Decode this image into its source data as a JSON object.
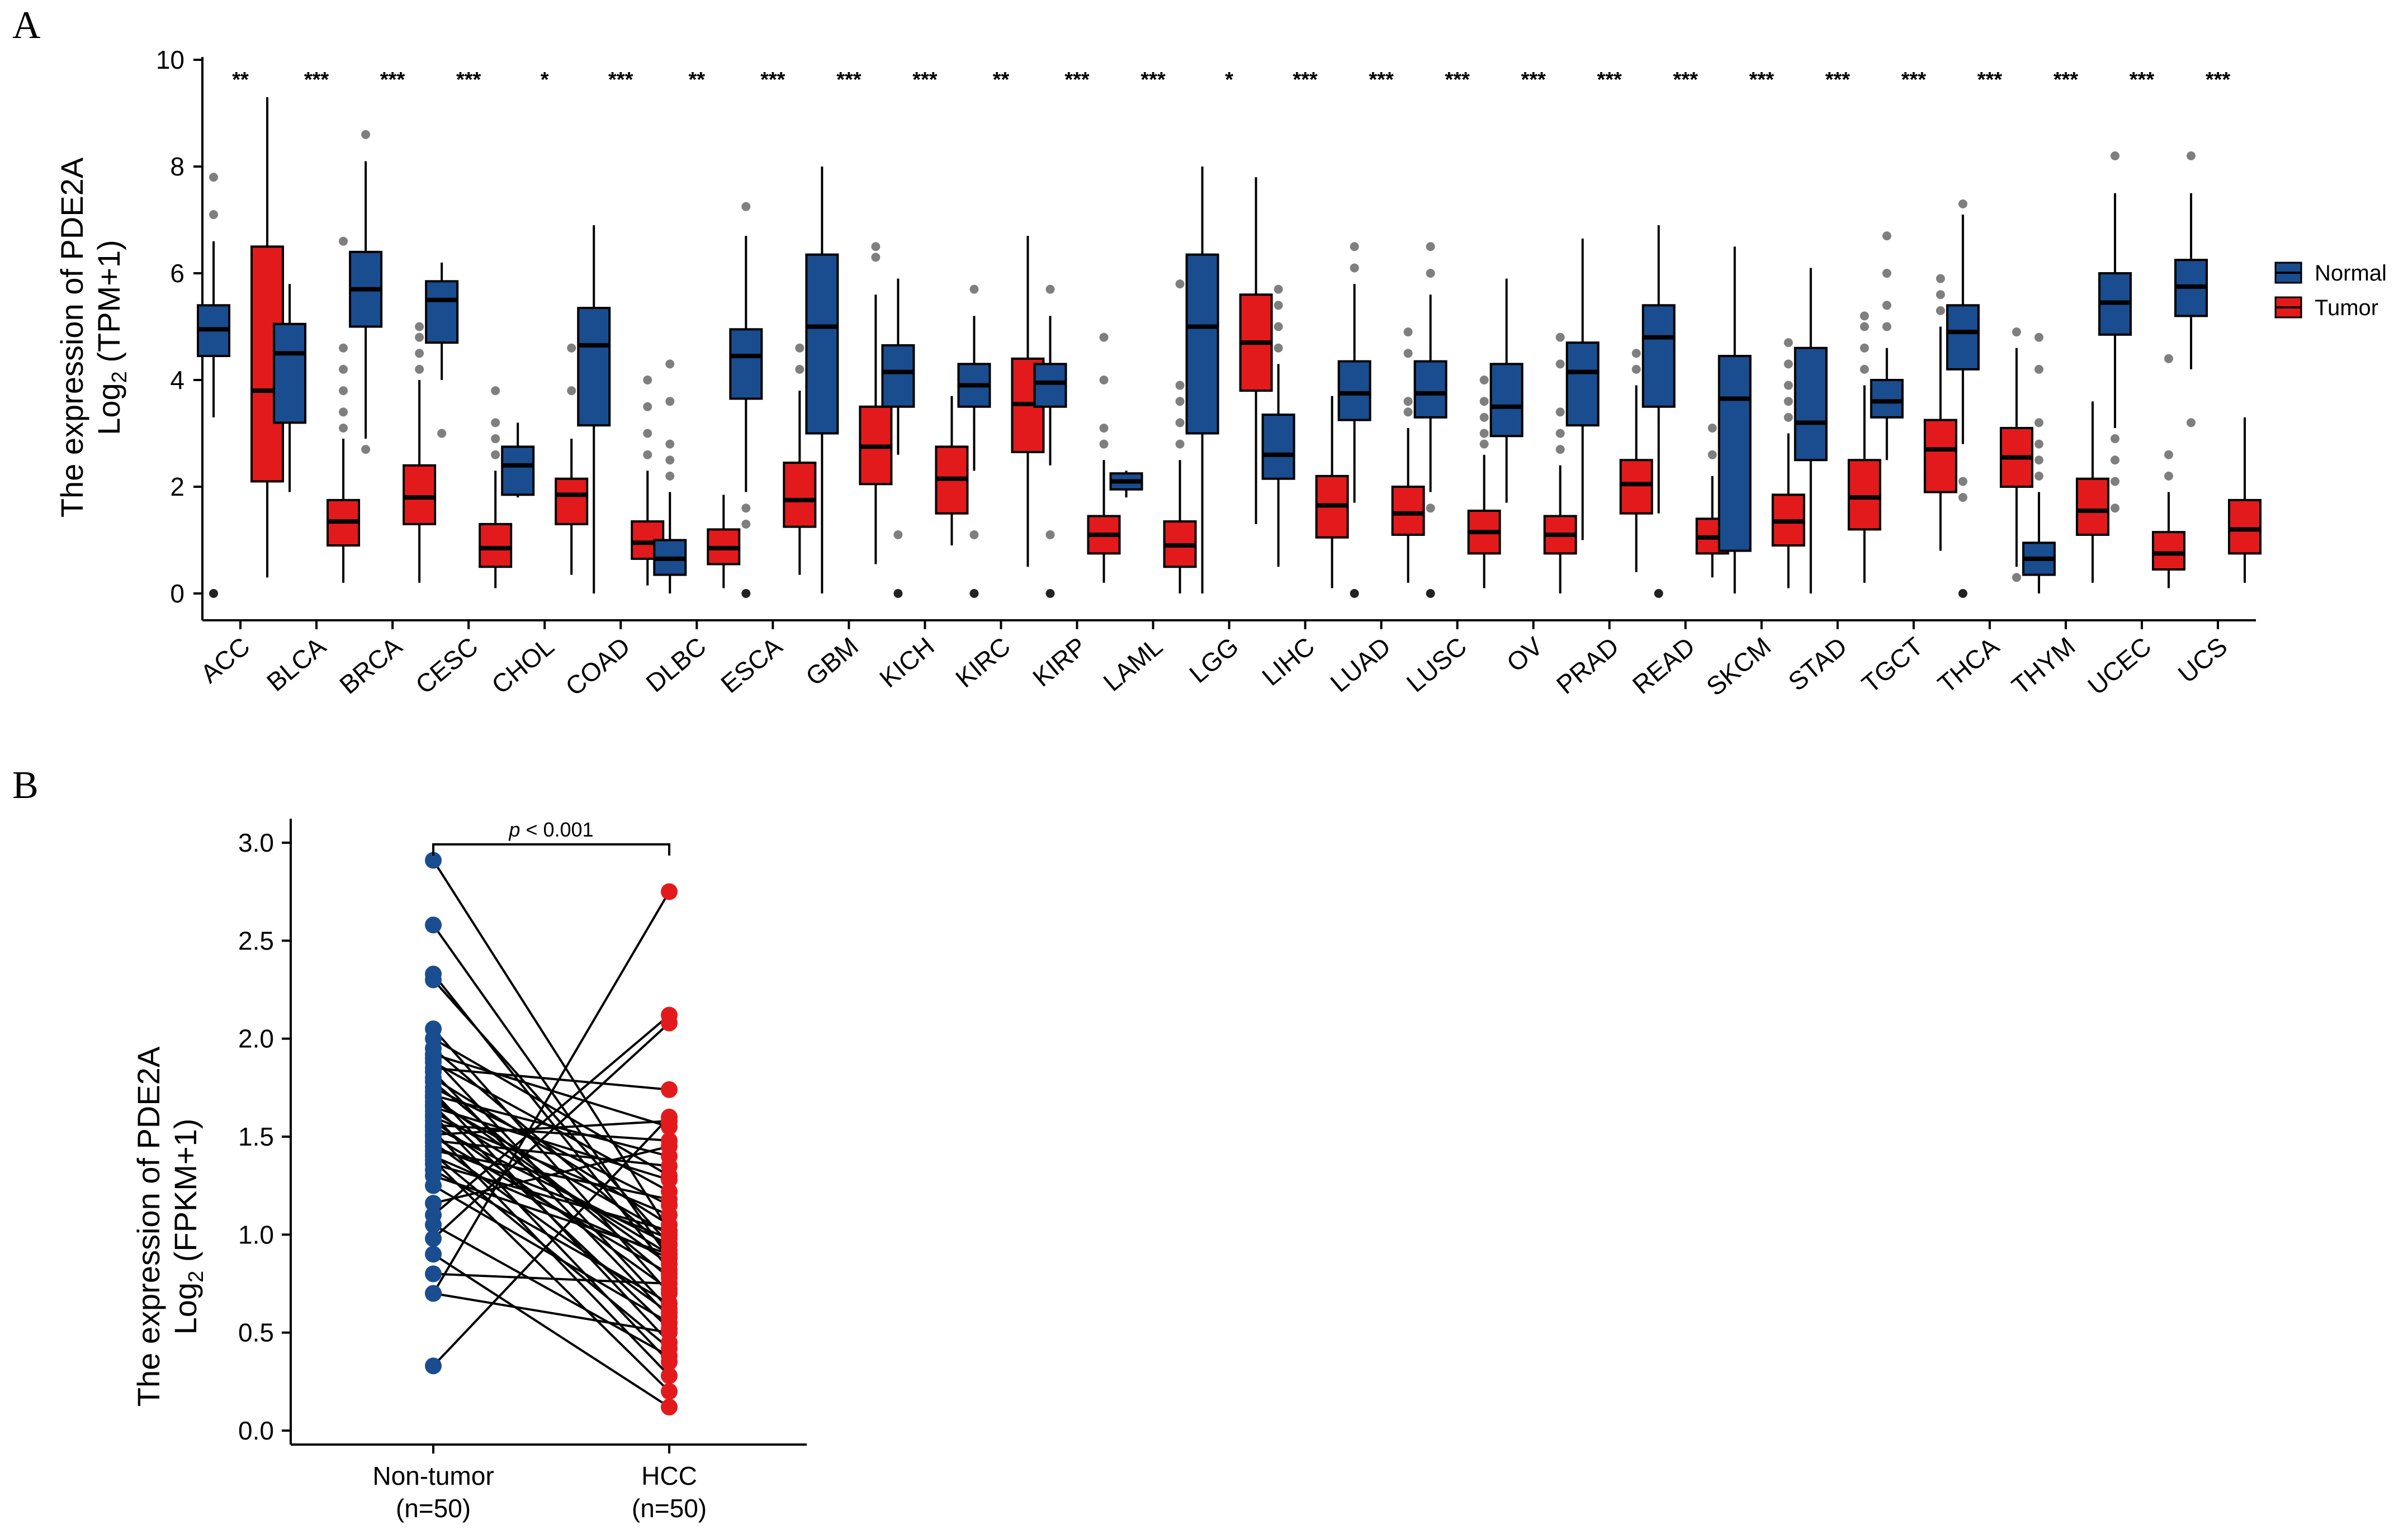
{
  "chart_data": [
    {
      "panel": "A",
      "type": "box",
      "ylabel_line1": "The expression of PDE2A",
      "ylabel_line2_prefix": "Log",
      "ylabel_line2_sub": "2",
      "ylabel_line2_suffix": " (TPM+1)",
      "ylim": [
        0,
        10
      ],
      "yticks": [
        0,
        2,
        4,
        6,
        8,
        10
      ],
      "legend": {
        "placement": "right",
        "entries": [
          {
            "name": "Normal",
            "color": "#1a4d8f"
          },
          {
            "name": "Tumor",
            "color": "#e31a1c"
          }
        ]
      },
      "categories": [
        {
          "name": "ACC",
          "sig": "**",
          "normal": {
            "q1": 4.45,
            "median": 4.95,
            "q3": 5.4,
            "lo": 3.3,
            "hi": 6.6,
            "out": [
              7.1,
              7.8,
              0.0
            ]
          },
          "tumor": {
            "q1": 2.1,
            "median": 3.8,
            "q3": 6.5,
            "lo": 0.3,
            "hi": 9.3,
            "out": []
          }
        },
        {
          "name": "BLCA",
          "sig": "***",
          "normal": {
            "q1": 3.2,
            "median": 4.5,
            "q3": 5.05,
            "lo": 1.9,
            "hi": 5.8,
            "out": []
          },
          "tumor": {
            "q1": 0.9,
            "median": 1.35,
            "q3": 1.75,
            "lo": 0.2,
            "hi": 2.9,
            "out": [
              3.1,
              3.4,
              3.8,
              4.2,
              4.6,
              6.6
            ]
          }
        },
        {
          "name": "BRCA",
          "sig": "***",
          "normal": {
            "q1": 5.0,
            "median": 5.7,
            "q3": 6.4,
            "lo": 2.9,
            "hi": 8.1,
            "out": [
              8.6,
              2.7
            ]
          },
          "tumor": {
            "q1": 1.3,
            "median": 1.8,
            "q3": 2.4,
            "lo": 0.2,
            "hi": 4.0,
            "out": [
              4.2,
              4.5,
              4.8,
              5.0
            ]
          }
        },
        {
          "name": "CESC",
          "sig": "***",
          "normal": {
            "q1": 4.7,
            "median": 5.5,
            "q3": 5.85,
            "lo": 4.0,
            "hi": 6.2,
            "out": [
              3.0
            ]
          },
          "tumor": {
            "q1": 0.5,
            "median": 0.85,
            "q3": 1.3,
            "lo": 0.1,
            "hi": 2.3,
            "out": [
              2.6,
              2.9,
              3.2,
              3.8
            ]
          }
        },
        {
          "name": "CHOL",
          "sig": "*",
          "normal": {
            "q1": 1.85,
            "median": 2.4,
            "q3": 2.75,
            "lo": 1.8,
            "hi": 3.2,
            "out": []
          },
          "tumor": {
            "q1": 1.3,
            "median": 1.85,
            "q3": 2.15,
            "lo": 0.35,
            "hi": 2.9,
            "out": [
              3.8,
              4.6
            ]
          }
        },
        {
          "name": "COAD",
          "sig": "***",
          "normal": {
            "q1": 3.15,
            "median": 4.65,
            "q3": 5.35,
            "lo": 0.0,
            "hi": 6.9,
            "out": []
          },
          "tumor": {
            "q1": 0.65,
            "median": 0.95,
            "q3": 1.35,
            "lo": 0.15,
            "hi": 2.3,
            "out": [
              2.6,
              3.0,
              3.5,
              4.0
            ]
          }
        },
        {
          "name": "DLBC",
          "sig": "**",
          "normal": {
            "q1": 0.35,
            "median": 0.65,
            "q3": 1.0,
            "lo": 0.0,
            "hi": 1.9,
            "out": [
              2.2,
              2.5,
              2.8,
              3.6,
              4.3
            ]
          },
          "tumor": {
            "q1": 0.55,
            "median": 0.85,
            "q3": 1.2,
            "lo": 0.1,
            "hi": 1.85,
            "out": []
          }
        },
        {
          "name": "ESCA",
          "sig": "***",
          "normal": {
            "q1": 3.65,
            "median": 4.45,
            "q3": 4.95,
            "lo": 1.9,
            "hi": 6.7,
            "out": [
              7.25,
              1.6,
              1.3,
              0.0
            ]
          },
          "tumor": {
            "q1": 1.25,
            "median": 1.75,
            "q3": 2.45,
            "lo": 0.35,
            "hi": 3.8,
            "out": [
              4.2,
              4.6
            ]
          }
        },
        {
          "name": "GBM",
          "sig": "***",
          "normal": {
            "q1": 3.0,
            "median": 5.0,
            "q3": 6.35,
            "lo": 0.0,
            "hi": 8.0,
            "out": []
          },
          "tumor": {
            "q1": 2.05,
            "median": 2.75,
            "q3": 3.5,
            "lo": 0.55,
            "hi": 5.6,
            "out": [
              6.3,
              6.5
            ]
          }
        },
        {
          "name": "KICH",
          "sig": "***",
          "normal": {
            "q1": 3.5,
            "median": 4.15,
            "q3": 4.65,
            "lo": 2.6,
            "hi": 5.9,
            "out": [
              1.1,
              0.0
            ]
          },
          "tumor": {
            "q1": 1.5,
            "median": 2.15,
            "q3": 2.75,
            "lo": 0.9,
            "hi": 3.7,
            "out": []
          }
        },
        {
          "name": "KIRC",
          "sig": "**",
          "normal": {
            "q1": 3.5,
            "median": 3.9,
            "q3": 4.3,
            "lo": 2.3,
            "hi": 5.2,
            "out": [
              5.7,
              1.1,
              0.0
            ]
          },
          "tumor": {
            "q1": 2.65,
            "median": 3.55,
            "q3": 4.4,
            "lo": 0.5,
            "hi": 6.7,
            "out": []
          }
        },
        {
          "name": "KIRP",
          "sig": "***",
          "normal": {
            "q1": 3.5,
            "median": 3.95,
            "q3": 4.3,
            "lo": 2.4,
            "hi": 5.2,
            "out": [
              5.7,
              1.1,
              0.0
            ]
          },
          "tumor": {
            "q1": 0.75,
            "median": 1.1,
            "q3": 1.45,
            "lo": 0.2,
            "hi": 2.5,
            "out": [
              2.8,
              3.1,
              4.0,
              4.8
            ]
          }
        },
        {
          "name": "LAML",
          "sig": "***",
          "normal": {
            "q1": 1.95,
            "median": 2.1,
            "q3": 2.25,
            "lo": 1.8,
            "hi": 2.3,
            "out": []
          },
          "tumor": {
            "q1": 0.5,
            "median": 0.9,
            "q3": 1.35,
            "lo": 0.0,
            "hi": 2.5,
            "out": [
              2.8,
              3.2,
              3.6,
              3.9,
              5.8
            ]
          }
        },
        {
          "name": "LGG",
          "sig": "*",
          "normal": {
            "q1": 3.0,
            "median": 5.0,
            "q3": 6.35,
            "lo": 0.0,
            "hi": 8.0,
            "out": []
          },
          "tumor": {
            "q1": 3.8,
            "median": 4.7,
            "q3": 5.6,
            "lo": 1.3,
            "hi": 7.8,
            "out": []
          }
        },
        {
          "name": "LIHC",
          "sig": "***",
          "normal": {
            "q1": 2.15,
            "median": 2.6,
            "q3": 3.35,
            "lo": 0.5,
            "hi": 4.3,
            "out": [
              4.6,
              5.0,
              5.4,
              5.7
            ]
          },
          "tumor": {
            "q1": 1.05,
            "median": 1.65,
            "q3": 2.2,
            "lo": 0.1,
            "hi": 3.7,
            "out": []
          }
        },
        {
          "name": "LUAD",
          "sig": "***",
          "normal": {
            "q1": 3.25,
            "median": 3.75,
            "q3": 4.35,
            "lo": 1.7,
            "hi": 5.8,
            "out": [
              6.1,
              6.5,
              0.0
            ]
          },
          "tumor": {
            "q1": 1.1,
            "median": 1.5,
            "q3": 2.0,
            "lo": 0.2,
            "hi": 3.1,
            "out": [
              3.4,
              3.6,
              4.5,
              4.9
            ]
          }
        },
        {
          "name": "LUSC",
          "sig": "***",
          "normal": {
            "q1": 3.3,
            "median": 3.75,
            "q3": 4.35,
            "lo": 1.9,
            "hi": 5.6,
            "out": [
              6.0,
              6.5,
              1.6,
              0.0
            ]
          },
          "tumor": {
            "q1": 0.75,
            "median": 1.15,
            "q3": 1.55,
            "lo": 0.1,
            "hi": 2.6,
            "out": [
              2.8,
              3.0,
              3.3,
              3.6,
              4.0
            ]
          }
        },
        {
          "name": "OV",
          "sig": "***",
          "normal": {
            "q1": 2.95,
            "median": 3.5,
            "q3": 4.3,
            "lo": 1.7,
            "hi": 5.9,
            "out": []
          },
          "tumor": {
            "q1": 0.75,
            "median": 1.1,
            "q3": 1.45,
            "lo": 0.0,
            "hi": 2.4,
            "out": [
              2.7,
              3.0,
              3.4,
              4.3,
              4.8
            ]
          }
        },
        {
          "name": "PRAD",
          "sig": "***",
          "normal": {
            "q1": 3.15,
            "median": 4.15,
            "q3": 4.7,
            "lo": 1.0,
            "hi": 6.65,
            "out": []
          },
          "tumor": {
            "q1": 1.5,
            "median": 2.05,
            "q3": 2.5,
            "lo": 0.4,
            "hi": 3.9,
            "out": [
              4.2,
              4.5
            ]
          }
        },
        {
          "name": "READ",
          "sig": "***",
          "normal": {
            "q1": 3.5,
            "median": 4.8,
            "q3": 5.4,
            "lo": 1.5,
            "hi": 6.9,
            "out": [
              0.0
            ]
          },
          "tumor": {
            "q1": 0.75,
            "median": 1.05,
            "q3": 1.4,
            "lo": 0.3,
            "hi": 2.2,
            "out": [
              2.6,
              3.1
            ]
          }
        },
        {
          "name": "SKCM",
          "sig": "***",
          "normal": {
            "q1": 0.8,
            "median": 3.65,
            "q3": 4.45,
            "lo": 0.0,
            "hi": 6.5,
            "out": []
          },
          "tumor": {
            "q1": 0.9,
            "median": 1.35,
            "q3": 1.85,
            "lo": 0.1,
            "hi": 3.0,
            "out": [
              3.3,
              3.6,
              3.9,
              4.3,
              4.7
            ]
          }
        },
        {
          "name": "STAD",
          "sig": "***",
          "normal": {
            "q1": 2.5,
            "median": 3.2,
            "q3": 4.6,
            "lo": 0.0,
            "hi": 6.1,
            "out": []
          },
          "tumor": {
            "q1": 1.2,
            "median": 1.8,
            "q3": 2.5,
            "lo": 0.2,
            "hi": 3.9,
            "out": [
              4.2,
              4.6,
              5.0,
              5.2
            ]
          }
        },
        {
          "name": "TGCT",
          "sig": "***",
          "normal": {
            "q1": 3.3,
            "median": 3.6,
            "q3": 4.0,
            "lo": 2.5,
            "hi": 4.6,
            "out": [
              5.0,
              5.4,
              6.0,
              6.7
            ]
          },
          "tumor": {
            "q1": 1.9,
            "median": 2.7,
            "q3": 3.25,
            "lo": 0.8,
            "hi": 5.0,
            "out": [
              5.3,
              5.6,
              5.9
            ]
          }
        },
        {
          "name": "THCA",
          "sig": "***",
          "normal": {
            "q1": 4.2,
            "median": 4.9,
            "q3": 5.4,
            "lo": 2.8,
            "hi": 7.1,
            "out": [
              7.3,
              2.1,
              1.8,
              0.0
            ]
          },
          "tumor": {
            "q1": 2.0,
            "median": 2.55,
            "q3": 3.1,
            "lo": 0.5,
            "hi": 4.6,
            "out": [
              4.9,
              0.3
            ]
          }
        },
        {
          "name": "THYM",
          "sig": "***",
          "normal": {
            "q1": 0.35,
            "median": 0.65,
            "q3": 0.95,
            "lo": 0.0,
            "hi": 1.9,
            "out": [
              2.2,
              2.5,
              2.8,
              3.2,
              4.2,
              4.8
            ]
          },
          "tumor": {
            "q1": 1.1,
            "median": 1.55,
            "q3": 2.15,
            "lo": 0.2,
            "hi": 3.6,
            "out": []
          }
        },
        {
          "name": "UCEC",
          "sig": "***",
          "normal": {
            "q1": 4.85,
            "median": 5.45,
            "q3": 6.0,
            "lo": 3.1,
            "hi": 7.5,
            "out": [
              8.2,
              2.9,
              2.5,
              2.1,
              1.6
            ]
          },
          "tumor": {
            "q1": 0.45,
            "median": 0.75,
            "q3": 1.15,
            "lo": 0.1,
            "hi": 1.9,
            "out": [
              2.2,
              2.6,
              4.4
            ]
          }
        },
        {
          "name": "UCS",
          "sig": "***",
          "normal": {
            "q1": 5.2,
            "median": 5.75,
            "q3": 6.25,
            "lo": 4.2,
            "hi": 7.5,
            "out": [
              8.2,
              3.2
            ]
          },
          "tumor": {
            "q1": 0.75,
            "median": 1.2,
            "q3": 1.75,
            "lo": 0.2,
            "hi": 3.3,
            "out": []
          }
        }
      ]
    },
    {
      "panel": "B",
      "type": "paired-scatter",
      "ylabel_line1": "The expression of PDE2A",
      "ylabel_line2_prefix": "Log",
      "ylabel_line2_sub": "2",
      "ylabel_line2_suffix": " (FPKM+1)",
      "ylim": [
        0,
        3
      ],
      "yticks": [
        "0.0",
        "0.5",
        "1.0",
        "1.5",
        "2.0",
        "2.5",
        "3.0"
      ],
      "groups": [
        {
          "label": "Non-tumor",
          "n_label": "(n=50)",
          "color": "#1a4d8f"
        },
        {
          "label": "HCC",
          "n_label": "(n=50)",
          "color": "#e31a1c"
        }
      ],
      "annotation": {
        "p_symbol": "p",
        "text": " < 0.001"
      },
      "pairs": [
        [
          2.91,
          1.02
        ],
        [
          2.58,
          0.88
        ],
        [
          2.33,
          0.82
        ],
        [
          2.3,
          0.95
        ],
        [
          2.05,
          0.7
        ],
        [
          2.0,
          1.3
        ],
        [
          1.95,
          0.92
        ],
        [
          1.92,
          1.55
        ],
        [
          1.9,
          0.62
        ],
        [
          1.88,
          1.22
        ],
        [
          1.85,
          1.74
        ],
        [
          1.83,
          0.58
        ],
        [
          1.8,
          1.05
        ],
        [
          1.78,
          0.78
        ],
        [
          1.75,
          1.15
        ],
        [
          1.73,
          0.45
        ],
        [
          1.71,
          1.4
        ],
        [
          1.7,
          0.85
        ],
        [
          1.68,
          1.0
        ],
        [
          1.66,
          0.52
        ],
        [
          1.65,
          1.28
        ],
        [
          1.63,
          0.9
        ],
        [
          1.61,
          0.35
        ],
        [
          1.6,
          1.1
        ],
        [
          1.58,
          0.72
        ],
        [
          1.56,
          1.48
        ],
        [
          1.55,
          0.95
        ],
        [
          1.53,
          0.28
        ],
        [
          1.51,
          1.58
        ],
        [
          1.5,
          0.8
        ],
        [
          1.48,
          1.35
        ],
        [
          1.47,
          0.6
        ],
        [
          1.45,
          0.98
        ],
        [
          1.43,
          1.18
        ],
        [
          1.41,
          0.42
        ],
        [
          1.4,
          0.88
        ],
        [
          1.38,
          0.2
        ],
        [
          1.36,
          1.02
        ],
        [
          1.33,
          0.65
        ],
        [
          1.3,
          0.9
        ],
        [
          1.25,
          0.55
        ],
        [
          1.16,
          1.45
        ],
        [
          1.1,
          2.12
        ],
        [
          1.05,
          0.38
        ],
        [
          0.98,
          2.08
        ],
        [
          0.9,
          0.12
        ],
        [
          0.8,
          0.75
        ],
        [
          0.7,
          0.5
        ],
        [
          0.7,
          2.75
        ],
        [
          0.33,
          1.6
        ]
      ]
    }
  ]
}
